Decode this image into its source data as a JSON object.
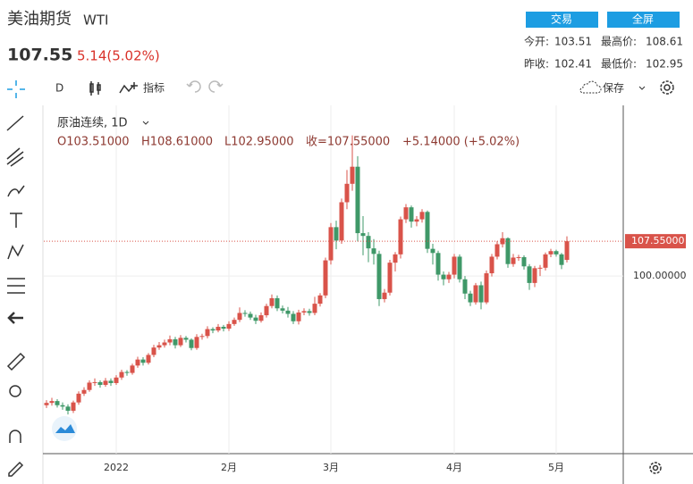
{
  "header": {
    "title": "美油期货",
    "symbol": "WTI",
    "price": "107.55",
    "change": "5.14(5.02%)",
    "buttons": [
      "交易",
      "全屏"
    ],
    "stats": [
      [
        "今开:",
        "103.51"
      ],
      [
        "最高价:",
        "108.61"
      ],
      [
        "昨收:",
        "102.41"
      ],
      [
        "最低价:",
        "102.95"
      ]
    ]
  },
  "toolbar": {
    "interval": "D",
    "indicators": "指标",
    "save": "保存"
  },
  "chart_data": {
    "type": "candlestick",
    "legend_title": "原油连续, 1D",
    "legend_values": [
      "O103.51000",
      "H108.61000",
      "L102.95000",
      "收=107.55000",
      "+5.14000 (+5.02%)"
    ],
    "categories": [
      null,
      null,
      null,
      null,
      null,
      null,
      null,
      null,
      null,
      null,
      null,
      null,
      null,
      "2022",
      null,
      null,
      null,
      null,
      null,
      null,
      null,
      null,
      null,
      null,
      null,
      null,
      null,
      null,
      null,
      null,
      null,
      null,
      null,
      null,
      "2月",
      null,
      null,
      null,
      null,
      null,
      null,
      null,
      null,
      null,
      null,
      null,
      null,
      null,
      null,
      null,
      null,
      null,
      null,
      "3月",
      null,
      null,
      null,
      null,
      null,
      null,
      null,
      null,
      null,
      null,
      null,
      null,
      null,
      null,
      null,
      null,
      null,
      null,
      null,
      null,
      null,
      null,
      "4月",
      null,
      null,
      null,
      null,
      null,
      null,
      null,
      null,
      null,
      null,
      null,
      null,
      null,
      null,
      null,
      null,
      null,
      null,
      "5月",
      null,
      null
    ],
    "open": [
      72.0,
      72.5,
      72.9,
      72.0,
      71.7,
      70.8,
      72.6,
      74.5,
      75.3,
      76.9,
      77.0,
      76.4,
      77.3,
      76.8,
      78.0,
      79.2,
      79.0,
      80.6,
      81.9,
      81.2,
      82.9,
      84.5,
      85.0,
      85.6,
      86.3,
      85.0,
      86.6,
      86.2,
      84.4,
      86.8,
      87.0,
      88.5,
      88.2,
      89.0,
      88.6,
      89.6,
      90.5,
      92.0,
      91.8,
      91.0,
      90.3,
      91.5,
      93.5,
      95.2,
      93.0,
      92.5,
      91.8,
      90.2,
      92.1,
      92.4,
      92.0,
      94.0,
      95.8,
      103.4,
      110.6,
      107.7,
      116.0,
      120.0,
      123.7,
      109.3,
      108.7,
      106.0,
      104.8,
      95.0,
      96.4,
      102.9,
      104.7,
      112.3,
      114.9,
      111.8,
      112.3,
      113.9,
      105.9,
      105.0,
      100.3,
      99.3,
      100.3,
      104.2,
      99.3,
      96.2,
      94.3,
      98.0,
      94.3,
      100.6,
      104.2,
      106.9,
      108.2,
      102.6,
      104.0,
      104.1,
      102.1,
      98.5,
      101.7,
      101.8,
      104.7,
      105.4,
      104.7,
      103.51
    ],
    "high": [
      73.1,
      73.6,
      73.3,
      72.6,
      72.2,
      73.0,
      75.0,
      75.9,
      77.4,
      77.8,
      77.4,
      77.9,
      77.8,
      78.5,
      79.7,
      79.6,
      81.0,
      82.5,
      82.4,
      83.3,
      85.1,
      85.7,
      86.2,
      87.1,
      86.8,
      87.2,
      87.0,
      86.5,
      87.4,
      87.5,
      89.1,
      88.9,
      89.6,
      89.4,
      90.2,
      91.0,
      93.2,
      92.6,
      92.3,
      91.6,
      92.1,
      94.0,
      96.0,
      95.8,
      93.6,
      93.3,
      92.4,
      92.7,
      93.0,
      92.9,
      95.5,
      96.3,
      104.0,
      111.5,
      112.0,
      116.8,
      123.0,
      130.5,
      126.0,
      113.0,
      109.5,
      108.0,
      105.5,
      97.2,
      103.5,
      105.2,
      112.9,
      115.6,
      115.3,
      113.0,
      114.5,
      114.2,
      107.0,
      105.5,
      101.0,
      100.9,
      104.8,
      104.7,
      100.0,
      96.8,
      98.5,
      98.8,
      101.2,
      104.8,
      107.6,
      109.5,
      108.4,
      104.8,
      104.6,
      104.5,
      102.6,
      102.2,
      102.4,
      105.1,
      105.9,
      105.7,
      105.0,
      108.61
    ],
    "low": [
      71.4,
      71.9,
      71.5,
      71.0,
      70.0,
      70.3,
      72.1,
      74.0,
      74.9,
      76.2,
      75.8,
      76.0,
      76.2,
      76.4,
      77.5,
      78.4,
      78.6,
      80.1,
      80.6,
      80.8,
      82.4,
      84.0,
      84.5,
      85.0,
      84.3,
      84.6,
      85.6,
      83.9,
      84.0,
      86.2,
      86.5,
      87.6,
      87.8,
      88.0,
      88.1,
      89.2,
      90.0,
      91.2,
      90.5,
      89.6,
      89.9,
      91.0,
      93.0,
      92.4,
      91.9,
      91.0,
      89.6,
      89.5,
      91.5,
      91.4,
      91.5,
      93.4,
      95.2,
      102.5,
      105.8,
      107.0,
      114.5,
      118.5,
      107.5,
      104.5,
      103.0,
      102.5,
      93.5,
      94.3,
      95.8,
      101.0,
      103.8,
      111.5,
      110.5,
      110.8,
      111.6,
      105.0,
      102.5,
      99.0,
      98.0,
      98.5,
      99.5,
      98.6,
      95.0,
      93.5,
      93.8,
      92.8,
      93.9,
      99.9,
      103.6,
      106.2,
      101.8,
      102.0,
      103.3,
      101.4,
      97.0,
      97.6,
      100.0,
      101.2,
      104.1,
      104.2,
      101.5,
      102.95
    ],
    "close": [
      72.5,
      72.9,
      72.0,
      71.7,
      70.8,
      72.6,
      74.5,
      75.3,
      76.9,
      77.0,
      76.4,
      77.3,
      76.8,
      78.0,
      79.2,
      79.0,
      80.6,
      81.9,
      81.2,
      82.9,
      84.5,
      85.0,
      85.6,
      86.3,
      85.0,
      86.6,
      86.2,
      84.4,
      86.8,
      87.0,
      88.5,
      88.2,
      89.0,
      88.6,
      89.6,
      90.5,
      92.0,
      91.8,
      91.0,
      90.3,
      91.5,
      93.5,
      95.2,
      93.0,
      92.5,
      91.8,
      90.2,
      92.1,
      92.4,
      92.0,
      94.0,
      95.8,
      103.4,
      110.6,
      107.7,
      116.0,
      120.0,
      123.7,
      109.3,
      108.7,
      106.0,
      104.8,
      95.0,
      96.4,
      102.9,
      104.7,
      112.3,
      114.9,
      111.8,
      112.3,
      113.9,
      105.9,
      105.0,
      100.3,
      99.3,
      100.3,
      104.2,
      99.3,
      96.2,
      94.3,
      98.0,
      94.3,
      100.6,
      104.2,
      106.9,
      108.2,
      102.6,
      104.0,
      104.1,
      102.1,
      98.5,
      101.7,
      101.8,
      104.7,
      105.4,
      104.7,
      102.41,
      107.55
    ],
    "up_color": "#d9534a",
    "down_color": "#3f9868",
    "ylim": [
      61.5,
      137
    ],
    "yticks": [
      {
        "value": 100,
        "label": "100.00000"
      }
    ],
    "last_price": {
      "value": 107.55,
      "label": "107.55000"
    },
    "grid": true
  }
}
